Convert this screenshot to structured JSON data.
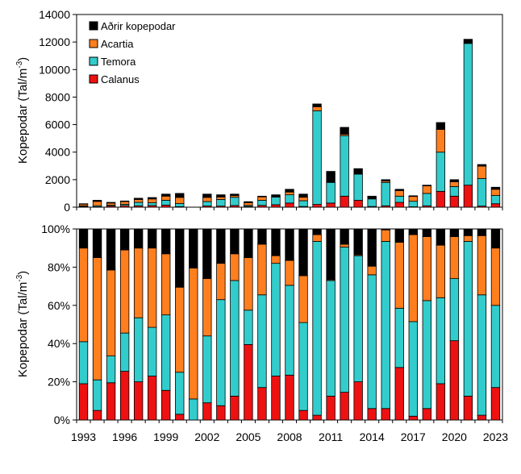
{
  "colors": {
    "adrir": "#000000",
    "acartia": "#ff7f1f",
    "temora": "#33cccc",
    "calanus": "#ee1111"
  },
  "chart_data": [
    {
      "type": "bar",
      "stacked": true,
      "ylabel": "Kopepodar (Tal/m⁻³)",
      "ylim": [
        0,
        14000
      ],
      "yticks": [
        "0",
        "2000",
        "4000",
        "6000",
        "8000",
        "10000",
        "12000",
        "14000"
      ],
      "legend_position": "top-left",
      "years": [
        1993,
        1994,
        1995,
        1996,
        1997,
        1998,
        1999,
        2000,
        2001,
        2002,
        2003,
        2004,
        2005,
        2006,
        2007,
        2008,
        2009,
        2010,
        2011,
        2012,
        2013,
        2014,
        2015,
        2016,
        2017,
        2018,
        2019,
        2020,
        2021,
        2022,
        2023
      ],
      "series": [
        {
          "name": "Calanus",
          "key": "calanus",
          "values": [
            50,
            30,
            80,
            110,
            100,
            120,
            150,
            40,
            0,
            90,
            80,
            120,
            50,
            130,
            180,
            300,
            50,
            200,
            300,
            800,
            500,
            50,
            100,
            350,
            30,
            100,
            1150,
            800,
            1600,
            80,
            250
          ]
        },
        {
          "name": "Temora",
          "key": "temora",
          "values": [
            50,
            80,
            60,
            100,
            250,
            200,
            350,
            220,
            0,
            320,
            480,
            600,
            80,
            370,
            550,
            600,
            420,
            6800,
            1500,
            4400,
            1900,
            550,
            1700,
            450,
            400,
            900,
            2850,
            700,
            10300,
            2000,
            600
          ]
        },
        {
          "name": "Acartia",
          "key": "acartia",
          "values": [
            120,
            310,
            160,
            200,
            210,
            280,
            300,
            450,
            0,
            300,
            180,
            120,
            200,
            250,
            50,
            200,
            250,
            300,
            0,
            100,
            0,
            50,
            100,
            400,
            350,
            550,
            1650,
            350,
            0,
            900,
            450
          ]
        },
        {
          "name": "Aðrir kopepodar",
          "key": "adrir",
          "values": [
            30,
            80,
            50,
            40,
            90,
            100,
            150,
            290,
            0,
            240,
            160,
            110,
            70,
            50,
            120,
            200,
            230,
            200,
            800,
            500,
            400,
            150,
            100,
            100,
            50,
            50,
            500,
            150,
            300,
            120,
            150
          ]
        }
      ]
    },
    {
      "type": "bar",
      "stacked": true,
      "percent": true,
      "ylabel": "Kopepodar (Tal/m⁻³)",
      "ylim": [
        0,
        100
      ],
      "yticks": [
        "0%",
        "20%",
        "40%",
        "60%",
        "80%",
        "100%"
      ],
      "xticks": [
        "1993",
        "1996",
        "1999",
        "2002",
        "2005",
        "2008",
        "2011",
        "2014",
        "2017",
        "2020",
        "2023"
      ],
      "years": [
        1993,
        1994,
        1995,
        1996,
        1997,
        1998,
        1999,
        2000,
        2001,
        2002,
        2003,
        2004,
        2005,
        2006,
        2007,
        2008,
        2009,
        2010,
        2011,
        2012,
        2013,
        2014,
        2015,
        2016,
        2017,
        2018,
        2019,
        2020,
        2021,
        2022,
        2023
      ],
      "series": [
        {
          "name": "Calanus",
          "key": "calanus",
          "values": [
            19,
            5,
            19.5,
            25.5,
            20,
            23,
            15.5,
            3,
            0,
            9,
            7.5,
            12.5,
            39.5,
            17,
            23,
            23.5,
            5,
            2.5,
            12.5,
            14.5,
            20,
            6,
            6,
            27.5,
            2,
            6,
            19,
            41.5,
            12.5,
            2.5,
            17
          ]
        },
        {
          "name": "Temora",
          "key": "temora",
          "values": [
            22,
            16,
            14,
            20,
            33.5,
            25.5,
            39.5,
            22,
            11,
            35,
            55.5,
            60.5,
            18,
            48.5,
            59,
            47,
            46,
            91,
            60.5,
            76,
            66,
            70,
            87.5,
            31,
            49.5,
            56.5,
            45,
            32.5,
            81,
            63,
            43
          ]
        },
        {
          "name": "Acartia",
          "key": "acartia",
          "values": [
            49,
            64,
            45,
            43.5,
            36.5,
            41.5,
            32,
            44.5,
            68.5,
            30,
            19,
            14,
            27.5,
            26.5,
            4,
            13,
            24.5,
            3.5,
            0.5,
            1.5,
            0.5,
            4.5,
            6,
            34.5,
            45.5,
            33.5,
            27.5,
            22,
            3,
            31,
            30
          ]
        },
        {
          "name": "Aðrir kopepodar",
          "key": "adrir",
          "values": [
            10,
            15,
            21.5,
            11,
            10,
            10,
            13,
            30.5,
            20.5,
            26,
            18,
            13,
            15,
            8,
            14,
            16.5,
            24.5,
            3,
            26.5,
            8,
            13.5,
            19.5,
            0.5,
            7,
            3,
            4,
            8.5,
            4,
            3.5,
            3.5,
            10
          ]
        }
      ]
    }
  ]
}
